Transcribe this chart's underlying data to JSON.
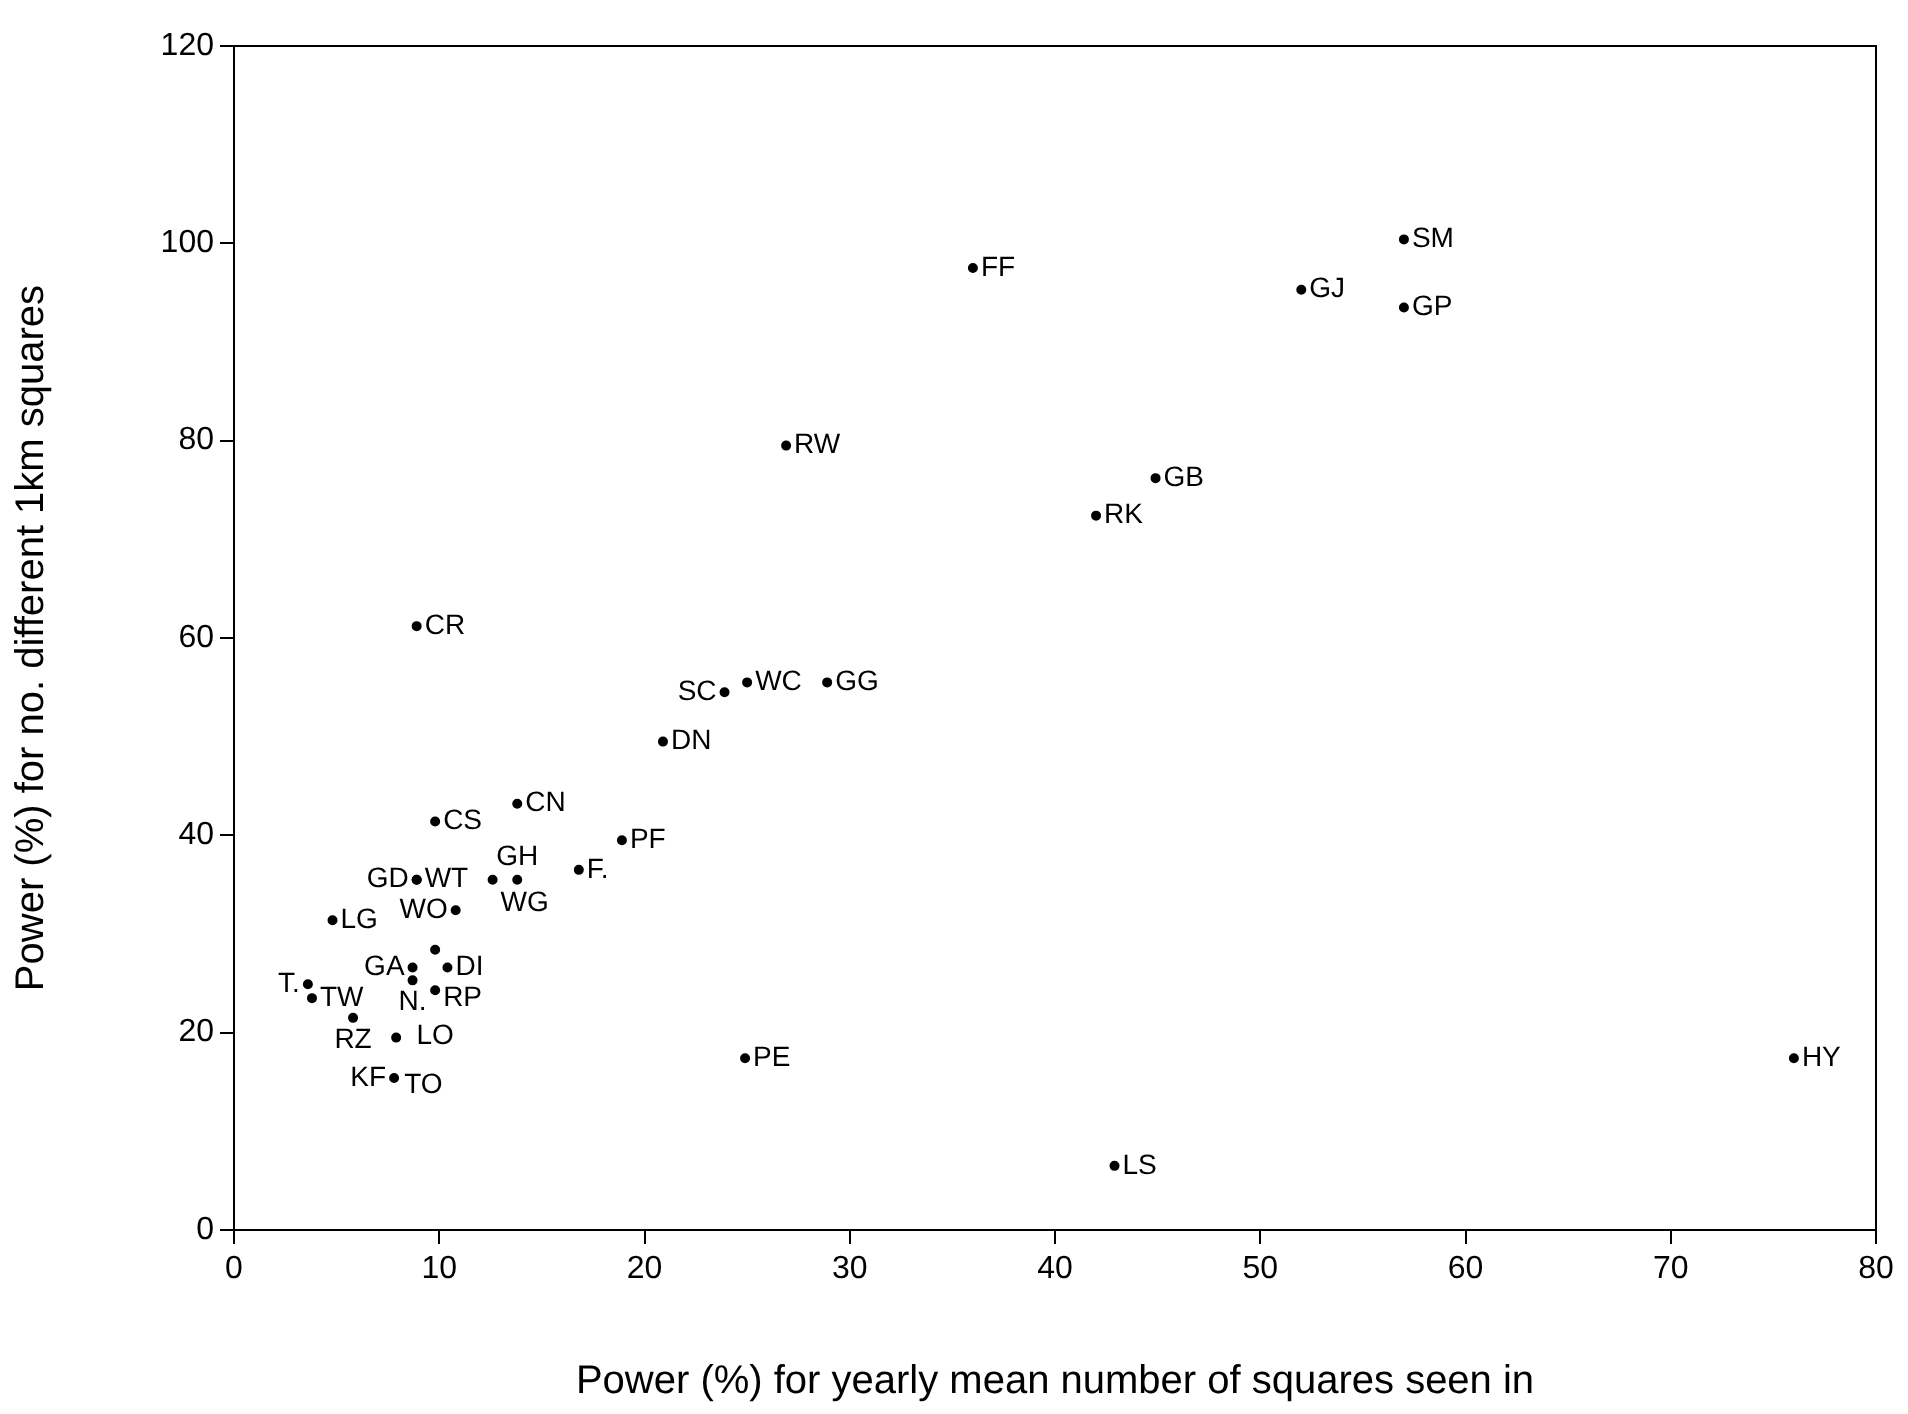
{
  "chart_data": {
    "type": "scatter",
    "xlabel": "Power (%) for yearly mean number of squares seen in",
    "ylabel": "Power (%) for no. different 1km squares",
    "marker": "circle",
    "grid": false,
    "legend": false,
    "xlim": [
      0,
      80
    ],
    "xticks": [
      0,
      10,
      20,
      30,
      40,
      50,
      60,
      70,
      80
    ],
    "ylim": [
      0,
      120
    ],
    "yticks": [
      0,
      20,
      40,
      60,
      80,
      100,
      120
    ],
    "series": [
      {
        "color": "#000000",
        "x": [
          57.0,
          52.0,
          57.0,
          36.0,
          26.9,
          44.9,
          42.0,
          8.9,
          25.0,
          23.9,
          28.9,
          20.9,
          13.8,
          9.8,
          18.9,
          16.8,
          8.9,
          8.9,
          12.6,
          13.8,
          10.8,
          4.8,
          9.8,
          8.7,
          10.4,
          8.7,
          9.8,
          3.6,
          3.8,
          5.8,
          7.9,
          7.8,
          24.9,
          42.9,
          76.0
        ],
        "values": [
          100.4,
          95.3,
          93.5,
          97.5,
          79.5,
          76.2,
          72.4,
          61.2,
          55.5,
          54.5,
          55.5,
          49.5,
          43.2,
          41.4,
          39.5,
          36.5,
          35.5,
          35.5,
          35.5,
          35.5,
          32.4,
          31.4,
          28.4,
          26.6,
          26.6,
          25.3,
          24.3,
          24.9,
          23.5,
          21.5,
          19.5,
          15.4,
          17.4,
          6.5,
          17.4
        ],
        "value_labels": [
          "SM",
          "GJ",
          "GP",
          "FF",
          "RW",
          "GB",
          "RK",
          "CR",
          "WC",
          "SC",
          "GG",
          "DN",
          "CN",
          "CS",
          "PF",
          "F.",
          "WT",
          "GD",
          "WG",
          "GH",
          "WO",
          "LG",
          "RP",
          "GA",
          "DI",
          "N.",
          "LO",
          "T.",
          "TW",
          "RZ",
          "TO",
          "KF",
          "PE",
          "LS",
          "HY"
        ]
      }
    ]
  }
}
